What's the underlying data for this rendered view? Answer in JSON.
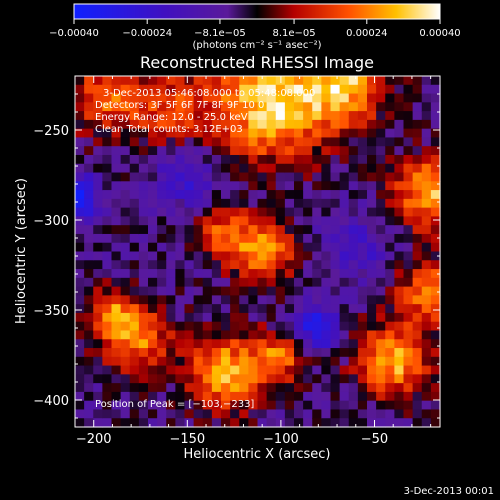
{
  "chart_data": {
    "type": "heatmap",
    "title": "Reconstructed RHESSI Image",
    "xlabel": "Heliocentric X (arcsec)",
    "ylabel": "Heliocentric Y (arcsec)",
    "xlim": [
      -210,
      -15
    ],
    "ylim": [
      -415,
      -220
    ],
    "xticks": [
      -200,
      -150,
      -100,
      -50
    ],
    "yticks": [
      -250,
      -300,
      -350,
      -400
    ],
    "xtick_labels": [
      "−200",
      "−150",
      "−100",
      "−50"
    ],
    "ytick_labels": [
      "−250",
      "−300",
      "−350",
      "−400"
    ],
    "colorbar": {
      "range": [
        -0.0004,
        0.0004
      ],
      "ticks": [
        -0.0004,
        -0.00024,
        -8.1e-05,
        8.1e-05,
        0.00024,
        0.0004
      ],
      "tick_labels": [
        "−0.00040",
        "−0.00024",
        "−8.1e−05",
        "8.1e−05",
        "0.00024",
        "0.00040"
      ],
      "units_label": "(photons cm⁻² s⁻¹ asec⁻²)"
    },
    "annotations": [
      "3-Dec-2013 05:46:08.000 to 05:48:08.000",
      "Detectors: 3F 5F 6F 7F 8F 9F 10 0",
      "Energy Range: 12.0 - 25.0 keV",
      "Clean    Total counts: 3.12E+03"
    ],
    "peak_label": "Position of Peak = [−103,−233]",
    "grid": false,
    "sources": [
      {
        "x": -105,
        "y": -235,
        "sigma": 22,
        "amp": 1.0
      },
      {
        "x": -65,
        "y": -225,
        "sigma": 15,
        "amp": 0.8
      },
      {
        "x": -195,
        "y": -232,
        "sigma": 14,
        "amp": 0.6
      },
      {
        "x": -160,
        "y": -238,
        "sigma": 15,
        "amp": 0.5
      },
      {
        "x": -20,
        "y": -285,
        "sigma": 14,
        "amp": 0.85
      },
      {
        "x": -110,
        "y": -318,
        "sigma": 12,
        "amp": 0.75
      },
      {
        "x": -130,
        "y": -307,
        "sigma": 10,
        "amp": 0.55
      },
      {
        "x": -178,
        "y": -365,
        "sigma": 13,
        "amp": 0.75
      },
      {
        "x": -190,
        "y": -350,
        "sigma": 9,
        "amp": 0.5
      },
      {
        "x": -130,
        "y": -385,
        "sigma": 14,
        "amp": 0.9
      },
      {
        "x": -100,
        "y": -375,
        "sigma": 10,
        "amp": 0.65
      },
      {
        "x": -40,
        "y": -378,
        "sigma": 14,
        "amp": 0.85
      },
      {
        "x": -20,
        "y": -340,
        "sigma": 13,
        "amp": 0.65
      },
      {
        "x": -210,
        "y": -288,
        "sigma": 9,
        "amp": -0.85
      },
      {
        "x": -82,
        "y": -360,
        "sigma": 9,
        "amp": -0.75
      },
      {
        "x": -150,
        "y": -275,
        "sigma": 12,
        "amp": -0.45
      },
      {
        "x": -60,
        "y": -315,
        "sigma": 12,
        "amp": -0.4
      }
    ],
    "background": -0.12,
    "grid_cells": 40
  },
  "footer_date": "3-Dec-2013 00:01"
}
